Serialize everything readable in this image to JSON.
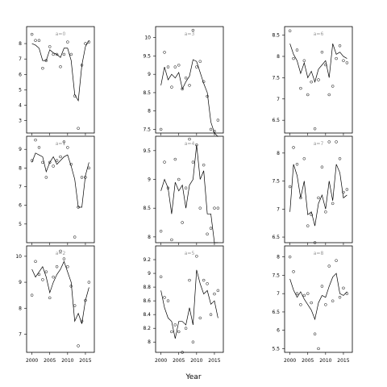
{
  "chart_data": {
    "type": "line",
    "xlabel": "Year",
    "x_ticks": [
      2000,
      2005,
      2010,
      2015
    ],
    "grid": false,
    "panels": [
      {
        "title": "a=0",
        "xlim": [
          1998.5,
          2017.5
        ],
        "ylim": [
          2.2,
          9.1
        ],
        "y_ticks": [
          3,
          4,
          5,
          6,
          7,
          8
        ],
        "x": [
          2000,
          2001,
          2002,
          2003,
          2004,
          2005,
          2006,
          2007,
          2008,
          2009,
          2010,
          2011,
          2012,
          2013,
          2014,
          2015,
          2016
        ],
        "points": [
          8.6,
          8.2,
          8.2,
          6.4,
          6.9,
          7.8,
          7.3,
          7.3,
          6.5,
          7.3,
          8.1,
          7.3,
          4.6,
          2.5,
          6.6,
          8.0,
          8.1
        ],
        "fitted": [
          8.0,
          7.9,
          7.7,
          6.9,
          6.9,
          7.6,
          7.4,
          7.3,
          7.1,
          7.7,
          7.7,
          6.9,
          4.7,
          4.3,
          6.6,
          7.8,
          8.2
        ]
      },
      {
        "title": "a=3",
        "xlim": [
          1998.5,
          2017.5
        ],
        "ylim": [
          7.4,
          10.3
        ],
        "y_ticks": [
          7.5,
          8.0,
          8.5,
          9.0,
          9.5,
          10.0
        ],
        "x": [
          2000,
          2001,
          2002,
          2003,
          2004,
          2005,
          2006,
          2007,
          2008,
          2009,
          2010,
          2011,
          2012,
          2013,
          2014,
          2015,
          2016
        ],
        "points": [
          7.5,
          9.6,
          9.2,
          8.65,
          9.2,
          9.25,
          8.6,
          8.9,
          8.7,
          10.2,
          9.2,
          9.35,
          8.8,
          8.4,
          7.5,
          7.45,
          7.75
        ],
        "fitted": [
          8.7,
          9.2,
          8.85,
          9.0,
          8.9,
          9.05,
          8.6,
          8.8,
          8.95,
          9.4,
          9.35,
          9.05,
          8.75,
          8.5,
          7.7,
          7.4,
          7.3
        ]
      },
      {
        "title": "a=6",
        "xlim": [
          1998.5,
          2017.5
        ],
        "ylim": [
          6.2,
          8.7
        ],
        "y_ticks": [
          6.5,
          7.0,
          7.5,
          8.0,
          8.5
        ],
        "x": [
          2000,
          2001,
          2002,
          2003,
          2004,
          2005,
          2006,
          2007,
          2008,
          2009,
          2010,
          2011,
          2012,
          2013,
          2014,
          2015,
          2016
        ],
        "points": [
          8.6,
          7.95,
          8.15,
          7.25,
          7.9,
          7.1,
          7.4,
          6.3,
          7.45,
          8.1,
          7.8,
          7.1,
          7.3,
          7.95,
          8.25,
          7.9,
          7.85
        ],
        "fitted": [
          8.3,
          8.05,
          7.9,
          7.6,
          7.85,
          7.5,
          7.65,
          7.4,
          7.7,
          7.8,
          7.9,
          7.5,
          8.3,
          8.05,
          8.1,
          8.0,
          7.95
        ]
      },
      {
        "title": "a=1",
        "xlim": [
          1998.5,
          2017.5
        ],
        "ylim": [
          4.0,
          9.7
        ],
        "y_ticks": [
          5,
          6,
          7,
          8,
          9
        ],
        "x": [
          2000,
          2001,
          2002,
          2003,
          2004,
          2005,
          2006,
          2007,
          2008,
          2009,
          2010,
          2011,
          2012,
          2013,
          2014,
          2015,
          2016
        ],
        "points": [
          8.4,
          9.5,
          9.1,
          8.3,
          7.5,
          8.3,
          8.1,
          8.4,
          8.6,
          9.4,
          9.1,
          8.2,
          4.3,
          5.9,
          7.5,
          7.5,
          8.0
        ],
        "fitted": [
          8.3,
          8.8,
          8.7,
          8.6,
          7.8,
          8.3,
          8.6,
          8.2,
          8.4,
          8.6,
          8.7,
          8.1,
          7.4,
          5.9,
          5.9,
          7.6,
          8.3
        ]
      },
      {
        "title": "a=4",
        "xlim": [
          1998.5,
          2017.5
        ],
        "ylim": [
          7.9,
          9.75
        ],
        "y_ticks": [
          8.0,
          8.5,
          9.0,
          9.5
        ],
        "x": [
          2000,
          2001,
          2002,
          2003,
          2004,
          2005,
          2006,
          2007,
          2008,
          2009,
          2010,
          2011,
          2012,
          2013,
          2014,
          2015,
          2016
        ],
        "points": [
          8.1,
          9.3,
          8.85,
          7.95,
          9.35,
          9.0,
          8.25,
          8.85,
          9.7,
          9.3,
          9.6,
          8.5,
          9.25,
          8.05,
          8.15,
          8.5,
          8.5
        ],
        "fitted": [
          8.8,
          9.0,
          8.85,
          8.4,
          8.95,
          8.8,
          8.9,
          8.5,
          8.9,
          9.0,
          9.6,
          9.0,
          9.15,
          8.4,
          8.4,
          7.9,
          7.9
        ]
      },
      {
        "title": "a=7",
        "xlim": [
          1998.5,
          2017.5
        ],
        "ylim": [
          6.4,
          8.3
        ],
        "y_ticks": [
          6.5,
          7.0,
          7.5,
          8.0
        ],
        "x": [
          2000,
          2001,
          2002,
          2003,
          2004,
          2005,
          2006,
          2007,
          2008,
          2009,
          2010,
          2011,
          2012,
          2013,
          2014,
          2015,
          2016
        ],
        "points": [
          7.4,
          8.1,
          7.8,
          7.2,
          7.9,
          6.7,
          6.9,
          6.4,
          7.2,
          7.75,
          6.95,
          8.2,
          7.1,
          8.2,
          7.9,
          7.3,
          7.35
        ],
        "fitted": [
          6.95,
          7.8,
          7.6,
          7.2,
          7.5,
          6.9,
          6.95,
          6.7,
          7.1,
          7.25,
          7.0,
          7.5,
          7.15,
          7.8,
          7.65,
          7.2,
          7.25
        ]
      },
      {
        "title": "a=2",
        "xlim": [
          1998.5,
          2017.5
        ],
        "ylim": [
          6.3,
          10.4
        ],
        "y_ticks": [
          7,
          8,
          9,
          10
        ],
        "x": [
          2000,
          2001,
          2002,
          2003,
          2004,
          2005,
          2006,
          2007,
          2008,
          2009,
          2010,
          2011,
          2012,
          2013,
          2014,
          2015,
          2016
        ],
        "points": [
          8.5,
          9.8,
          9.3,
          9.1,
          9.4,
          8.4,
          9.2,
          9.6,
          10.2,
          9.9,
          9.6,
          8.85,
          8.1,
          6.55,
          7.5,
          8.3,
          9.0
        ],
        "fitted": [
          9.5,
          9.2,
          9.4,
          9.6,
          9.2,
          8.6,
          9.0,
          9.3,
          9.5,
          9.8,
          9.4,
          9.0,
          7.5,
          7.8,
          7.4,
          8.3,
          8.8
        ]
      },
      {
        "title": "a=5",
        "xlim": [
          1998.5,
          2017.5
        ],
        "ylim": [
          7.85,
          9.4
        ],
        "y_ticks": [
          8.0,
          8.2,
          8.4,
          8.6,
          8.8,
          9.0,
          9.2
        ],
        "x": [
          2000,
          2001,
          2002,
          2003,
          2004,
          2005,
          2006,
          2007,
          2008,
          2009,
          2010,
          2011,
          2012,
          2013,
          2014,
          2015,
          2016
        ],
        "points": [
          8.95,
          8.65,
          8.6,
          8.15,
          8.25,
          8.15,
          7.85,
          8.2,
          8.9,
          8.0,
          9.25,
          8.35,
          8.9,
          8.85,
          8.4,
          8.7,
          8.75
        ],
        "fitted": [
          8.75,
          8.5,
          8.35,
          8.3,
          8.05,
          8.3,
          8.3,
          8.25,
          8.5,
          8.25,
          9.05,
          8.85,
          8.7,
          8.75,
          8.55,
          8.6,
          8.35
        ]
      },
      {
        "title": "a=8",
        "xlim": [
          1998.5,
          2017.5
        ],
        "ylim": [
          5.4,
          8.3
        ],
        "y_ticks": [
          5.5,
          6.0,
          6.5,
          7.0,
          7.5,
          8.0
        ],
        "x": [
          2000,
          2001,
          2002,
          2003,
          2004,
          2005,
          2006,
          2007,
          2008,
          2009,
          2010,
          2011,
          2012,
          2013,
          2014,
          2015,
          2016
        ],
        "points": [
          8.0,
          7.6,
          7.0,
          6.7,
          6.95,
          7.0,
          6.75,
          5.9,
          5.5,
          7.2,
          6.7,
          7.75,
          6.8,
          7.9,
          6.9,
          7.15,
          7.0
        ],
        "fitted": [
          7.4,
          7.1,
          6.9,
          7.05,
          6.85,
          6.7,
          6.55,
          6.3,
          6.75,
          6.95,
          6.9,
          7.2,
          7.45,
          7.55,
          7.0,
          6.95,
          7.05
        ]
      }
    ]
  }
}
